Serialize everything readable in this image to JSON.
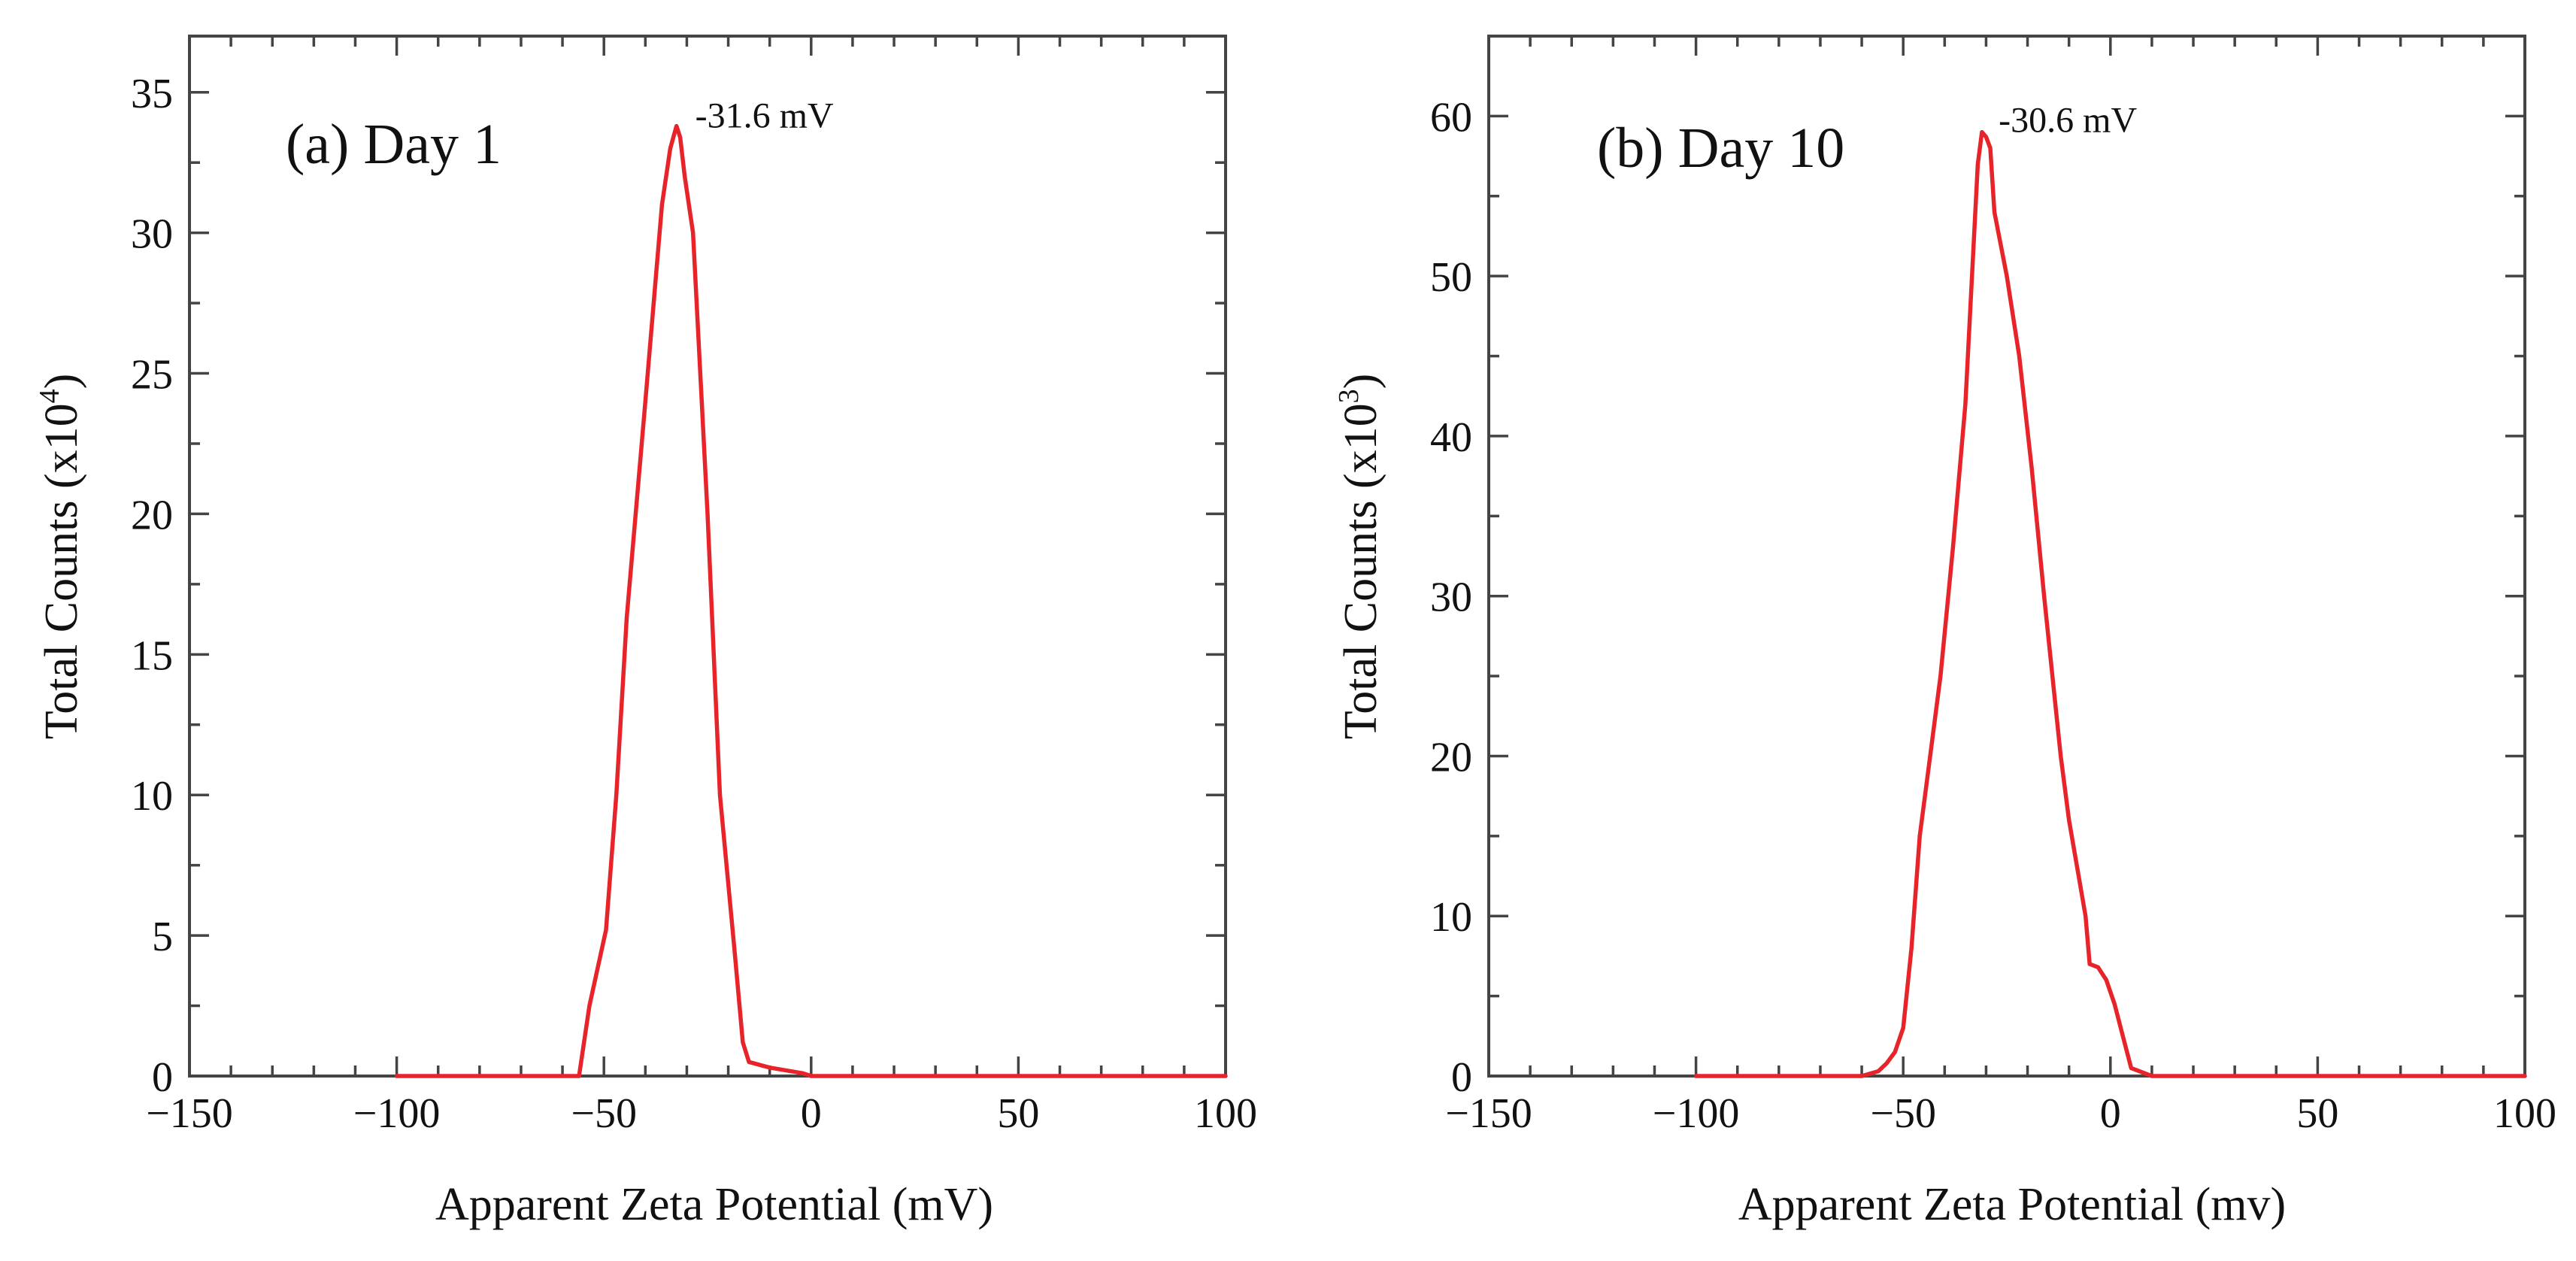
{
  "colors": {
    "series": "#e8242b",
    "frame": "#444444",
    "text": "#111111"
  },
  "chart_data": [
    {
      "type": "line",
      "panel_label": "(a) Day 1",
      "xlabel": "Apparent Zeta Potential (mV)",
      "ylabel_main": "Total Counts (x10",
      "ylabel_exp": "4",
      "ylabel_end": ")",
      "xlim": [
        -150,
        100
      ],
      "ylim": [
        0,
        37
      ],
      "xticks": [
        -150,
        -100,
        -50,
        0,
        50,
        100
      ],
      "xtick_labels": [
        "−150",
        "−100",
        "−50",
        "0",
        "50",
        "100"
      ],
      "yticks": [
        0,
        5,
        10,
        15,
        20,
        25,
        30,
        35
      ],
      "ytick_labels": [
        "0",
        "5",
        "10",
        "15",
        "20",
        "25",
        "30",
        "35"
      ],
      "peak": {
        "x": -31.6,
        "y": 33.8,
        "label": "-31.6 mV"
      },
      "series": [
        {
          "name": "Day 1",
          "x": [
            -100,
            -56,
            -53.5,
            -49.5,
            -47,
            -44.5,
            -40,
            -36,
            -34,
            -32.5,
            -31.6,
            -30.5,
            -28.5,
            -25,
            -22,
            -18.5,
            -16.5,
            -15,
            -10,
            -2,
            0,
            10,
            100
          ],
          "y": [
            0,
            0,
            2.5,
            5.2,
            10,
            16.3,
            24,
            31,
            33,
            33.8,
            33.4,
            32,
            30,
            20,
            10,
            4.5,
            1.2,
            0.5,
            0.3,
            0.1,
            0,
            0,
            0
          ]
        }
      ]
    },
    {
      "type": "line",
      "panel_label": "(b) Day 10",
      "xlabel": "Apparent Zeta Potential (mv)",
      "ylabel_main": "Total Counts (x10",
      "ylabel_exp": "3",
      "ylabel_end": ")",
      "xlim": [
        -150,
        100
      ],
      "ylim": [
        0,
        65
      ],
      "xticks": [
        -150,
        -100,
        -50,
        0,
        50,
        100
      ],
      "xtick_labels": [
        "−150",
        "−100",
        "−50",
        "0",
        "50",
        "100"
      ],
      "yticks": [
        0,
        10,
        20,
        30,
        40,
        50,
        60
      ],
      "ytick_labels": [
        "0",
        "10",
        "20",
        "30",
        "40",
        "50",
        "60"
      ],
      "peak": {
        "x": -30.6,
        "y": 59.1,
        "label": "-30.6 mV"
      },
      "series": [
        {
          "name": "Day 10",
          "x": [
            -100,
            -60,
            -56,
            -54,
            -52,
            -50,
            -48,
            -46,
            -44,
            -41,
            -38,
            -35,
            -33,
            -32,
            -31,
            -30,
            -29,
            -28,
            -25,
            -22,
            -19,
            -16,
            -12,
            -10,
            -6,
            -5,
            -3,
            -1,
            1,
            3,
            5,
            10,
            100
          ],
          "y": [
            0,
            0,
            0.3,
            0.8,
            1.5,
            3,
            8,
            15,
            19,
            25,
            33,
            42,
            52,
            57,
            59,
            58.7,
            58,
            54,
            50,
            45,
            38,
            30,
            20,
            16,
            10,
            7,
            6.8,
            6,
            4.5,
            2.5,
            0.5,
            0,
            0
          ]
        }
      ]
    }
  ]
}
